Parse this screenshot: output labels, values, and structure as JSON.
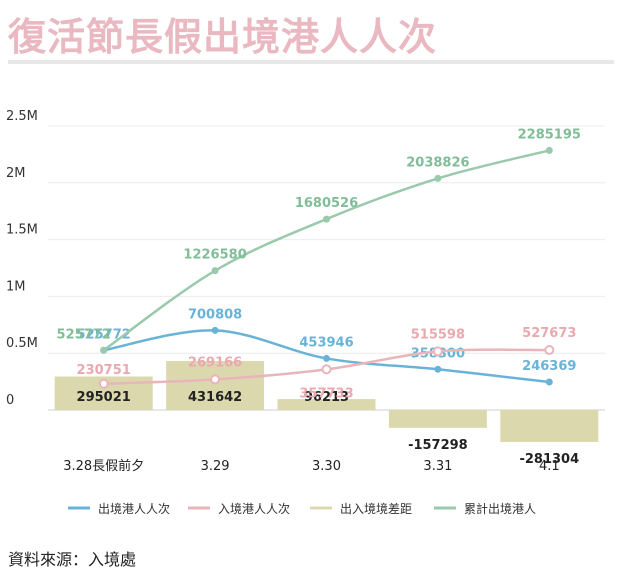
{
  "title": "復活節長假出境港人人次",
  "source": "資料來源：入境處",
  "chart_data": {
    "type": "bar+line",
    "categories": [
      "3.28長假前夕",
      "3.29",
      "3.30",
      "3.31",
      "4.1"
    ],
    "y_ticks": [
      {
        "value": 0,
        "label": "0"
      },
      {
        "value": 500000,
        "label": "0.5M"
      },
      {
        "value": 1000000,
        "label": "1M"
      },
      {
        "value": 1500000,
        "label": "1.5M"
      },
      {
        "value": 2000000,
        "label": "2M"
      },
      {
        "value": 2500000,
        "label": "2.5M"
      }
    ],
    "ylim": [
      -300000,
      2500000
    ],
    "grid": true,
    "legend_position": "bottom",
    "bars": {
      "name": "出入境境差距",
      "color": "#dcd8ae",
      "values": [
        295021,
        431642,
        96213,
        -157298,
        -281304
      ]
    },
    "lines": [
      {
        "name": "出境港人人次",
        "color": "#6ab3d8",
        "label_color": "#6ab3d8",
        "values": [
          525772,
          700808,
          453946,
          358300,
          246369
        ]
      },
      {
        "name": "入境港人人次",
        "color": "#e9b5bb",
        "label_color": "#e9a9b0",
        "values": [
          230751,
          269166,
          357733,
          515598,
          527673
        ]
      },
      {
        "name": "累計出境港人",
        "color": "#9ac9ac",
        "label_color": "#82bd98",
        "values": [
          525772,
          1226580,
          1680526,
          2038826,
          2285195
        ]
      }
    ],
    "legend": [
      {
        "name": "出境港人人次",
        "color": "#6ab3d8"
      },
      {
        "name": "入境港人人次",
        "color": "#e9b5bb"
      },
      {
        "name": "出入境境差距",
        "color": "#dcd8ae"
      },
      {
        "name": "累計出境港人",
        "color": "#9ac9ac"
      }
    ]
  }
}
